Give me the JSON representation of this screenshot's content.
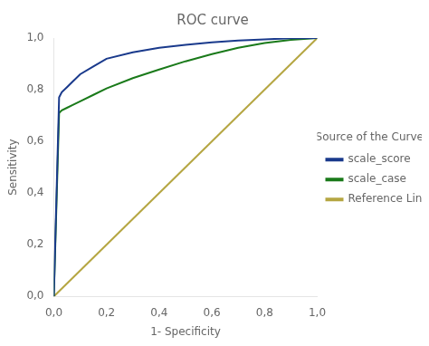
{
  "chart_data": {
    "type": "line",
    "title": "ROC curve",
    "xlabel": "1- Specificity",
    "ylabel": "Sensitivity",
    "legend_title": "Source of the Curve",
    "legend": "right",
    "grid": false,
    "xlim": [
      0.0,
      1.0
    ],
    "ylim": [
      0.0,
      1.0
    ],
    "xticks": [
      {
        "value": 0.0,
        "label": "0,0"
      },
      {
        "value": 0.2,
        "label": "0,2"
      },
      {
        "value": 0.4,
        "label": "0,4"
      },
      {
        "value": 0.6,
        "label": "0,6"
      },
      {
        "value": 0.8,
        "label": "0,8"
      },
      {
        "value": 1.0,
        "label": "1,0"
      }
    ],
    "yticks": [
      {
        "value": 0.0,
        "label": "0,0"
      },
      {
        "value": 0.2,
        "label": "0,2"
      },
      {
        "value": 0.4,
        "label": "0,4"
      },
      {
        "value": 0.6,
        "label": "0,6"
      },
      {
        "value": 0.8,
        "label": "0,8"
      },
      {
        "value": 1.0,
        "label": "1,0"
      }
    ],
    "series": [
      {
        "name": "scale_score",
        "color": "#1a3a8c",
        "x": [
          0.0,
          0.02,
          0.03,
          0.05,
          0.07,
          0.1,
          0.15,
          0.2,
          0.3,
          0.4,
          0.5,
          0.6,
          0.7,
          0.8,
          0.9,
          1.0
        ],
        "values": [
          0.0,
          0.77,
          0.79,
          0.81,
          0.83,
          0.86,
          0.89,
          0.92,
          0.945,
          0.962,
          0.974,
          0.983,
          0.99,
          0.995,
          0.999,
          1.0
        ]
      },
      {
        "name": "scale_case",
        "color": "#1a7a1a",
        "x": [
          0.0,
          0.02,
          0.03,
          0.05,
          0.07,
          0.1,
          0.15,
          0.2,
          0.3,
          0.4,
          0.5,
          0.6,
          0.7,
          0.8,
          0.9,
          1.0
        ],
        "values": [
          0.0,
          0.71,
          0.72,
          0.73,
          0.74,
          0.755,
          0.78,
          0.805,
          0.845,
          0.878,
          0.91,
          0.938,
          0.962,
          0.981,
          0.993,
          1.0
        ]
      },
      {
        "name": "Reference Line",
        "color": "#b5a642",
        "x": [
          0.0,
          1.0
        ],
        "values": [
          0.0,
          1.0
        ]
      }
    ]
  }
}
